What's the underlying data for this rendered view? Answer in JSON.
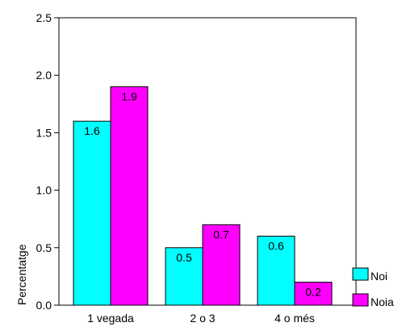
{
  "chart_data": {
    "type": "bar",
    "categories": [
      "1 vegada",
      "2 o 3",
      "4 o més"
    ],
    "series": [
      {
        "name": "Noi",
        "color": "#00ffff",
        "values": [
          1.6,
          0.5,
          0.6
        ],
        "labels": [
          "1.6",
          "0.5",
          "0.6"
        ]
      },
      {
        "name": "Noia",
        "color": "#ff00ff",
        "values": [
          1.9,
          0.7,
          0.2
        ],
        "labels": [
          "1.9",
          "0.7",
          "0.2"
        ]
      }
    ],
    "ylabel": "Percentatge",
    "xlabel": "",
    "ylim": [
      0,
      2.5
    ],
    "yticks": [
      "0.0",
      "0.5",
      "1.0",
      "1.5",
      "2.0",
      "2.5"
    ],
    "grid": false,
    "legend_position": "bottom-right"
  }
}
